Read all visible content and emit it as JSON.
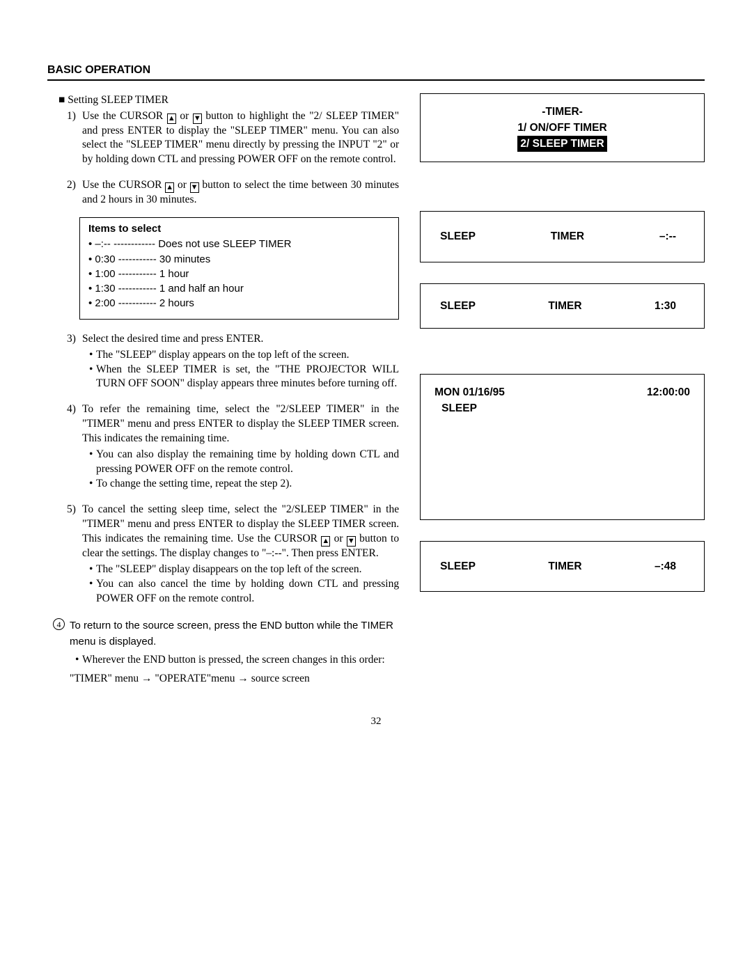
{
  "header": "BASIC OPERATION",
  "subhead": "Setting SLEEP TIMER",
  "step1": {
    "num": "1)",
    "pre": "Use the CURSOR ",
    "mid": " or ",
    "post": " button to highlight the \"2/ SLEEP TIMER\" and press ENTER to display the \"SLEEP TIMER\" menu. You can also select the \"SLEEP TIMER\" menu directly by pressing the INPUT \"2\" or by holding down CTL and pressing POWER OFF on the remote control."
  },
  "step2": {
    "num": "2)",
    "pre": "Use the CURSOR ",
    "mid": " or ",
    "post": " button to select the time between 30 minutes and 2 hours in 30 minutes."
  },
  "items": {
    "title": "Items to select",
    "rows": [
      {
        "k": "–:--",
        "dashes": "------------",
        "v": "Does not use SLEEP TIMER"
      },
      {
        "k": "0:30",
        "dashes": "-----------",
        "v": "30 minutes"
      },
      {
        "k": "1:00",
        "dashes": "-----------",
        "v": "1 hour"
      },
      {
        "k": "1:30",
        "dashes": "-----------",
        "v": "1 and half an hour"
      },
      {
        "k": "2:00",
        "dashes": "-----------",
        "v": "2 hours"
      }
    ]
  },
  "step3": {
    "num": "3)",
    "text": "Select the desired time and press ENTER.",
    "subs": [
      "The \"SLEEP\" display appears on the top left of the screen.",
      "When the SLEEP TIMER is set, the \"THE PROJECTOR WILL TURN OFF SOON\" display appears three minutes before turning off."
    ]
  },
  "step4": {
    "num": "4)",
    "text": "To refer the remaining time, select the \"2/SLEEP TIMER\" in the \"TIMER\" menu and press ENTER to display the SLEEP TIMER screen. This indicates the remaining time.",
    "subs": [
      "You can also display the remaining time by holding down CTL and pressing POWER OFF on the remote control.",
      "To change the setting time, repeat the step 2)."
    ]
  },
  "step5": {
    "num": "5)",
    "pre": "To cancel the setting sleep time, select the \"2/SLEEP TIMER\" in the \"TIMER\" menu and press ENTER to display the SLEEP TIMER screen. This indicates the remaining time. Use the CURSOR ",
    "mid": " or ",
    "post": "  button to clear the settings. The display changes to \"–:--\". Then press ENTER.",
    "subs": [
      "The \"SLEEP\" display disappears on the top left of the screen.",
      "You can also cancel the time by holding down CTL and pressing POWER OFF on the remote control."
    ]
  },
  "circ_step": {
    "num": "4",
    "text": "To return to the source screen, press the END button while the TIMER menu is displayed.",
    "sub": "Wherever the END button is pressed, the screen changes in this order:",
    "chain": "\"TIMER\" menu → \"OPERATE\"menu → source screen"
  },
  "osd_menu": {
    "title": "-TIMER-",
    "line1": "1/ ON/OFF TIMER",
    "line2": " 2/ SLEEP TIMER "
  },
  "osd_sleep1": {
    "a": "SLEEP",
    "b": "TIMER",
    "c": "–:--"
  },
  "osd_sleep2": {
    "a": "SLEEP",
    "b": "TIMER",
    "c": "1:30"
  },
  "osd_status": {
    "date": "MON 01/16/95",
    "time": "12:00:00",
    "sleep": "SLEEP"
  },
  "osd_sleep3": {
    "a": "SLEEP",
    "b": "TIMER",
    "c": "–:48"
  },
  "page": "32"
}
